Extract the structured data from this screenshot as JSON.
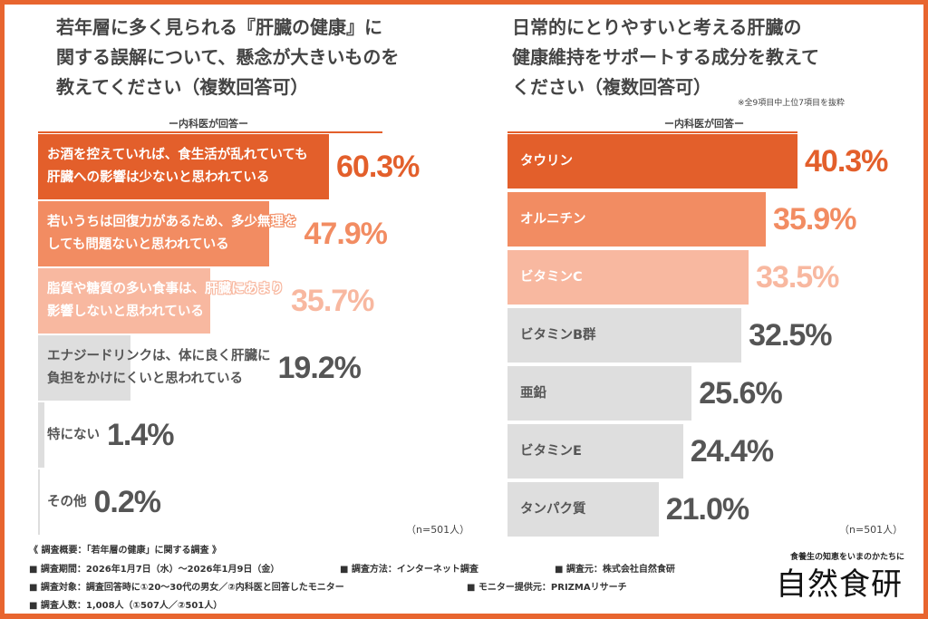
{
  "colors": {
    "dark": "#e35f2b",
    "mid": "#f28c62",
    "light": "#f8b8a0",
    "gray": "#dedede",
    "gray_text": "#555555"
  },
  "chart_data": [
    {
      "type": "bar",
      "orientation": "horizontal",
      "title": "若年層に多く見られる『肝臓の健康』に\n関する誤解について、懸念が大きいものを\n教えてください（複数回答可）",
      "subtitle": "ー内科医が回答ー",
      "sample": "（n=501人）",
      "unit": "%",
      "categories": [
        "お酒を控えていれば、食生活が乱れていても\n肝臓への影響は少ないと思われている",
        "若いうちは回復力があるため、多少無理を\nしても問題ないと思われている",
        "脂質や糖質の多い食事は、肝臓にあまり\n影響しないと思われている",
        "エナジードリンクは、体に良く肝臓に\n負担をかけにくいと思われている",
        "特にない",
        "その他"
      ],
      "values": [
        60.3,
        47.9,
        35.7,
        19.2,
        1.4,
        0.2
      ],
      "labels": [
        "60.3%",
        "47.9%",
        "35.7%",
        "19.2%",
        "1.4%",
        "0.2%"
      ],
      "bar_colors": [
        "dark",
        "mid",
        "light",
        "gray",
        "gray",
        "gray"
      ],
      "xlim": [
        0,
        60.3
      ]
    },
    {
      "type": "bar",
      "orientation": "horizontal",
      "title": "日常的にとりやすいと考える肝臓の\n健康維持をサポートする成分を教えて\nください（複数回答可）",
      "note": "※全9項目中上位7項目を抜粋",
      "subtitle": "ー内科医が回答ー",
      "sample": "（n=501人）",
      "unit": "%",
      "categories": [
        "タウリン",
        "オルニチン",
        "ビタミンC",
        "ビタミンB群",
        "亜鉛",
        "ビタミンE",
        "タンパク質"
      ],
      "values": [
        40.3,
        35.9,
        33.5,
        32.5,
        25.6,
        24.4,
        21.0
      ],
      "labels": [
        "40.3%",
        "35.9%",
        "33.5%",
        "32.5%",
        "25.6%",
        "24.4%",
        "21.0%"
      ],
      "bar_colors": [
        "dark",
        "mid",
        "light",
        "gray",
        "gray",
        "gray",
        "gray"
      ],
      "xlim": [
        0,
        40.3
      ]
    }
  ],
  "footer": {
    "lines": [
      "《 調査概要：「若年層の健康」に関する調査 》",
      "■ 調査期間：2026年1月7日（水）〜2026年1月9日（金）",
      "■ 調査方法：インターネット調査",
      "■ 調査元：株式会社自然食研",
      "■ 調査対象：調査回答時に①20〜30代の男女／②内科医と回答したモニター",
      "■ モニター提供元：PRIZMAリサーチ",
      "■ 調査人数：1,008人（①507人／②501人）"
    ],
    "tagline": "食養生の知恵をいまのかたちに",
    "brand": "自然食研"
  }
}
